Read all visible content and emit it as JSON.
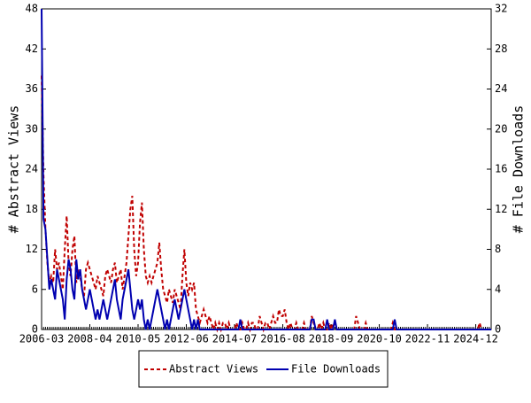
{
  "chart_data": {
    "type": "line",
    "y_label": "# Abstract Views",
    "y2_label": "# File Downloads",
    "categories": [
      "2006-03",
      null,
      null,
      null,
      null,
      null,
      null,
      null,
      null,
      null,
      null,
      null,
      null,
      null,
      null,
      null,
      null,
      null,
      null,
      null,
      null,
      null,
      null,
      null,
      null,
      "2008-04",
      null,
      null,
      null,
      null,
      null,
      null,
      null,
      null,
      null,
      null,
      null,
      null,
      null,
      null,
      null,
      null,
      null,
      null,
      null,
      null,
      null,
      null,
      null,
      null,
      "2010-05",
      null,
      null,
      null,
      null,
      null,
      null,
      null,
      null,
      null,
      null,
      null,
      null,
      null,
      null,
      null,
      null,
      null,
      null,
      null,
      null,
      null,
      null,
      null,
      null,
      "2012-06",
      null,
      null,
      null,
      null,
      null,
      null,
      null,
      null,
      null,
      null,
      null,
      null,
      null,
      null,
      null,
      null,
      null,
      null,
      null,
      null,
      null,
      null,
      null,
      null,
      "2014-07",
      null,
      null,
      null,
      null,
      null,
      null,
      null,
      null,
      null,
      null,
      null,
      null,
      null,
      null,
      null,
      null,
      null,
      null,
      null,
      null,
      null,
      null,
      null,
      null,
      "2016-08",
      null,
      null,
      null,
      null,
      null,
      null,
      null,
      null,
      null,
      null,
      null,
      null,
      null,
      null,
      null,
      null,
      null,
      null,
      null,
      null,
      null,
      null,
      null,
      null,
      "2018-09",
      null,
      null,
      null,
      null,
      null,
      null,
      null,
      null,
      null,
      null,
      null,
      null,
      null,
      null,
      null,
      null,
      null,
      null,
      null,
      null,
      null,
      null,
      null,
      null,
      "2020-10",
      null,
      null,
      null,
      null,
      null,
      null,
      null,
      null,
      null,
      null,
      null,
      null,
      null,
      null,
      null,
      null,
      null,
      null,
      null,
      null,
      null,
      null,
      null,
      null,
      "2022-11",
      null,
      null,
      null,
      null,
      null,
      null,
      null,
      null,
      null,
      null,
      null,
      null,
      null,
      null,
      null,
      null,
      null,
      null,
      null,
      null,
      null,
      null,
      null,
      null,
      "2024-12",
      null,
      null,
      null,
      null,
      null,
      null,
      null,
      null
    ],
    "series": [
      {
        "name": "Abstract Views",
        "color": "#c00000",
        "dash": true,
        "axis": "y",
        "values": [
          38,
          23,
          15,
          10,
          7,
          8,
          7,
          12,
          9,
          10,
          8,
          6,
          12,
          17,
          10,
          8,
          12,
          14,
          7,
          9,
          8,
          6,
          5,
          9,
          10,
          9,
          8,
          7,
          6,
          8,
          7,
          6,
          5,
          8,
          9,
          8,
          7,
          9,
          10,
          7,
          8,
          9,
          6,
          8,
          10,
          14,
          18,
          20,
          12,
          8,
          10,
          16,
          19,
          12,
          8,
          7,
          8,
          7,
          8,
          9,
          10,
          13,
          9,
          6,
          5,
          4,
          6,
          5,
          4,
          6,
          5,
          4,
          3,
          8,
          12,
          7,
          5,
          7,
          6,
          7,
          3,
          2,
          1,
          2,
          3,
          2,
          1,
          2,
          1,
          0,
          1,
          0,
          1,
          0,
          1,
          1,
          0,
          1,
          0,
          0,
          0,
          1,
          0,
          0,
          1,
          0,
          0,
          1,
          0,
          1,
          1,
          0,
          0,
          2,
          1,
          0,
          1,
          1,
          0,
          1,
          2,
          1,
          1,
          3,
          2,
          2,
          3,
          1,
          0,
          1,
          0,
          0,
          1,
          0,
          0,
          0,
          1,
          0,
          0,
          0,
          2,
          1,
          0,
          0,
          1,
          0,
          1,
          0,
          0,
          1,
          0,
          1,
          1,
          0,
          0,
          0,
          0,
          0,
          0,
          0,
          0,
          0,
          0,
          2,
          1,
          0,
          0,
          0,
          1,
          0,
          0,
          0,
          0,
          0,
          0,
          0,
          0,
          0,
          0,
          0,
          0,
          0,
          1,
          0,
          0,
          0,
          0,
          0,
          0,
          0,
          0,
          0,
          0,
          0,
          0,
          0,
          0,
          0,
          0,
          0,
          0,
          0,
          0,
          0,
          0,
          0,
          0,
          0,
          0,
          0,
          0,
          0,
          0,
          0,
          0,
          0,
          0,
          0,
          0,
          0,
          0,
          0,
          0,
          0,
          0,
          0,
          0,
          1,
          0,
          0,
          0,
          0,
          0,
          0
        ]
      },
      {
        "name": "File Downloads",
        "color": "#0000b0",
        "dash": false,
        "axis": "y2",
        "values": [
          32,
          11,
          10,
          7,
          4,
          5,
          4,
          3,
          6,
          5,
          4,
          3,
          1,
          5,
          7,
          6,
          4,
          3,
          7,
          5,
          6,
          4,
          3,
          2,
          3,
          4,
          3,
          2,
          1,
          2,
          1,
          2,
          3,
          2,
          1,
          2,
          3,
          4,
          5,
          3,
          2,
          1,
          3,
          4,
          5,
          6,
          4,
          2,
          1,
          2,
          3,
          2,
          3,
          1,
          0,
          1,
          0,
          1,
          2,
          3,
          4,
          3,
          2,
          1,
          0,
          1,
          0,
          1,
          2,
          3,
          2,
          1,
          2,
          3,
          4,
          3,
          2,
          1,
          0,
          1,
          0,
          1,
          0,
          0,
          0,
          0,
          0,
          0,
          0,
          0,
          0,
          0,
          0,
          0,
          0,
          0,
          0,
          0,
          0,
          0,
          0,
          0,
          0,
          1,
          0,
          0,
          0,
          0,
          0,
          0,
          0,
          0,
          0,
          0,
          0,
          0,
          0,
          0,
          0,
          0,
          0,
          0,
          0,
          0,
          0,
          0,
          0,
          0,
          0,
          0,
          0,
          0,
          0,
          0,
          0,
          0,
          0,
          0,
          0,
          0,
          1,
          1,
          0,
          0,
          0,
          0,
          0,
          0,
          1,
          0,
          0,
          0,
          1,
          0,
          0,
          0,
          0,
          0,
          0,
          0,
          0,
          0,
          0,
          0,
          0,
          0,
          0,
          0,
          0,
          0,
          0,
          0,
          0,
          0,
          0,
          0,
          0,
          0,
          0,
          0,
          0,
          0,
          0,
          1,
          0,
          0,
          0,
          0,
          0,
          0,
          0,
          0,
          0,
          0,
          0,
          0,
          0,
          0,
          0,
          0,
          0,
          0,
          0,
          0,
          0,
          0,
          0,
          0,
          0,
          0,
          0,
          0,
          0,
          0,
          0,
          0,
          0,
          0,
          0,
          0,
          0,
          0,
          0,
          0,
          0,
          0,
          0,
          0,
          0,
          0,
          0,
          0,
          0,
          0
        ]
      }
    ],
    "ylim": [
      0,
      48
    ],
    "yticks": [
      0,
      6,
      12,
      18,
      24,
      30,
      36,
      42,
      48
    ],
    "y2lim": [
      0,
      32
    ],
    "y2ticks": [
      0,
      4,
      8,
      12,
      16,
      20,
      24,
      28,
      32
    ],
    "grid": false,
    "legend": "bottom"
  }
}
